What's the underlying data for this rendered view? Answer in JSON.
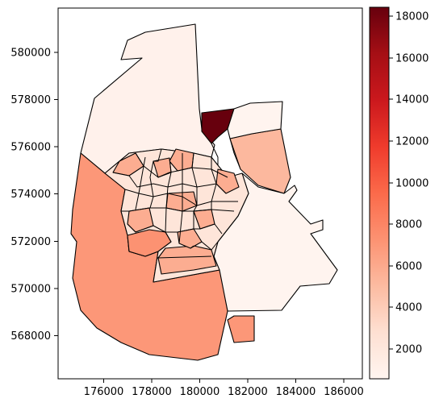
{
  "chart_data": {
    "type": "choropleth",
    "x_ticks": [
      "176000",
      "178000",
      "180000",
      "182000",
      "184000",
      "186000"
    ],
    "y_ticks": [
      "568000",
      "570000",
      "572000",
      "574000",
      "576000",
      "578000",
      "580000"
    ],
    "xlim": [
      174100,
      186500
    ],
    "ylim": [
      566700,
      582000
    ],
    "colorbar": {
      "colormap": "Reds",
      "range": [
        600,
        18400
      ],
      "ticks": [
        "2000",
        "4000",
        "6000",
        "8000",
        "10000",
        "12000",
        "14000",
        "16000",
        "18000"
      ]
    },
    "regions": [
      {
        "id": "north",
        "value": 1000
      },
      {
        "id": "north-tip",
        "value": 18400
      },
      {
        "id": "northeast-band",
        "value": 5200
      },
      {
        "id": "east",
        "value": 700
      },
      {
        "id": "west-south",
        "value": 7000
      },
      {
        "id": "south-east-patch",
        "value": 7000
      },
      {
        "id": "center-west-dark",
        "value": 7300
      },
      {
        "id": "center-south",
        "value": 5800
      }
    ]
  }
}
